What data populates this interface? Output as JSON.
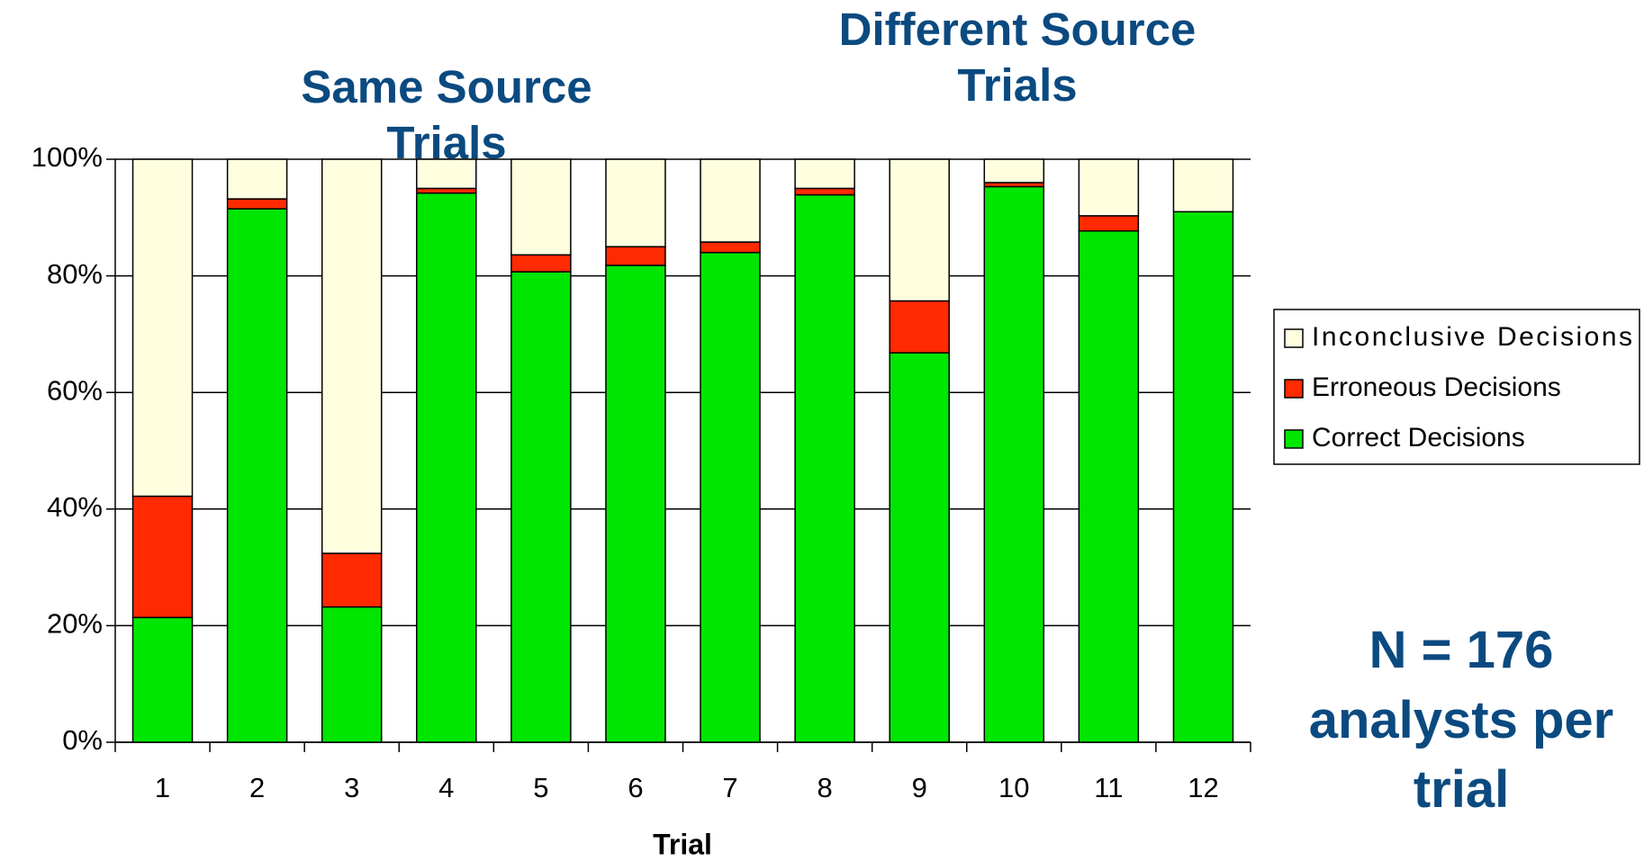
{
  "chart_data": {
    "type": "stacked_bar",
    "x_label": "Trial",
    "annotations": [
      "Same Source Trials",
      "Different Source Trials",
      "N = 176 analysts per trial"
    ],
    "categories": [
      "1",
      "2",
      "3",
      "4",
      "5",
      "6",
      "7",
      "8",
      "9",
      "10",
      "11",
      "12"
    ],
    "series": [
      {
        "name": "Correct Decisions",
        "color": "#00e600",
        "values": [
          21.4,
          91.5,
          23.2,
          94.2,
          80.7,
          81.8,
          84.0,
          93.9,
          66.8,
          95.3,
          87.7,
          91.0
        ]
      },
      {
        "name": "Erroneous Decisions",
        "color": "#ff2a00",
        "values": [
          20.8,
          1.7,
          9.2,
          0.8,
          2.9,
          3.2,
          1.8,
          1.1,
          8.9,
          0.7,
          2.6,
          0
        ]
      },
      {
        "name": "Inconclusive Decisions",
        "color": "#ffffe0",
        "values": [
          57.8,
          6.8,
          67.6,
          5.0,
          16.4,
          15.0,
          14.2,
          5.0,
          24.3,
          4.0,
          9.7,
          9.0
        ]
      }
    ],
    "ylim": [
      0,
      100
    ],
    "yticks": [
      {
        "value": 0,
        "label": "0%"
      },
      {
        "value": 20,
        "label": "20%"
      },
      {
        "value": 40,
        "label": "40%"
      },
      {
        "value": 60,
        "label": "60%"
      },
      {
        "value": 80,
        "label": "80%"
      },
      {
        "value": 100,
        "label": "100%"
      }
    ],
    "grid": true,
    "legend": "right"
  }
}
